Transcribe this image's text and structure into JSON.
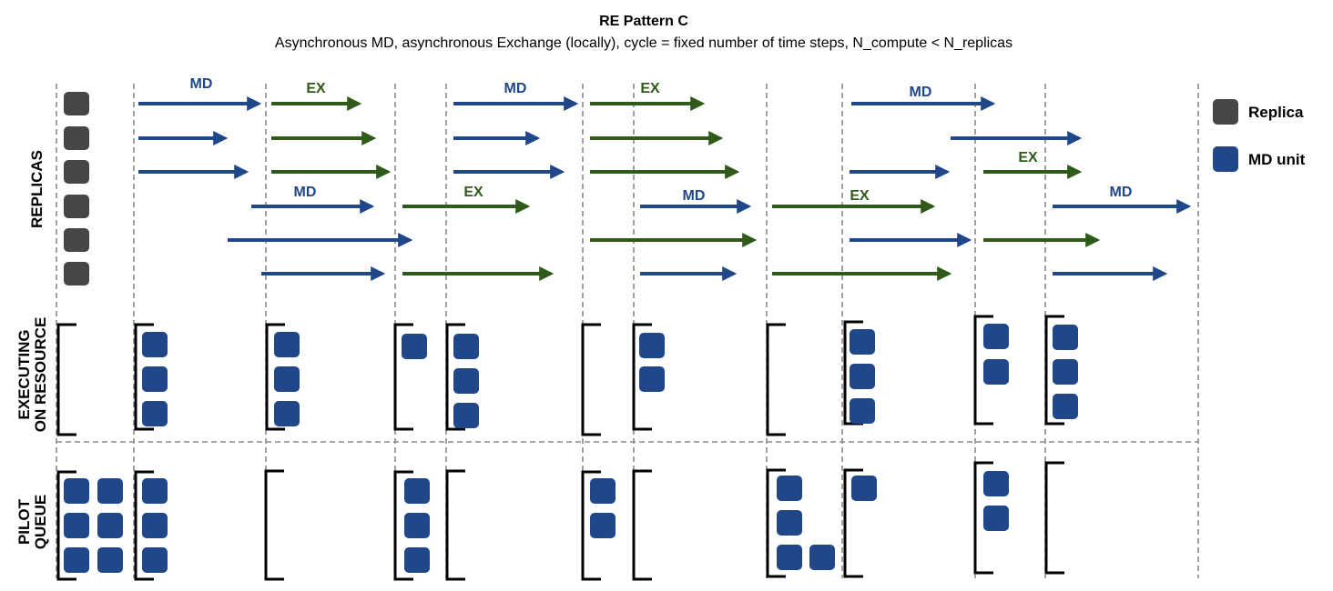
{
  "title": "RE Pattern C",
  "subtitle": "Asynchronous MD, asynchronous Exchange (locally), cycle = fixed number of time steps, N_compute < N_replicas",
  "sections": {
    "replicas": "REPLICAS",
    "executing_line1": "EXECUTING",
    "executing_line2": "ON RESOURCE",
    "queue_line1": "PILOT",
    "queue_line2": "QUEUE"
  },
  "legend": [
    {
      "name": "replica",
      "label": "Replica",
      "color": "#464646"
    },
    {
      "name": "md-unit",
      "label": "MD unit",
      "color": "#1f4789"
    }
  ],
  "colors": {
    "md": "#1f4789",
    "ex": "#2f5a1a",
    "replica": "#464646",
    "divider": "#888888",
    "bracket": "#000000"
  },
  "phase_labels": [
    {
      "text": "MD",
      "kind": "md"
    },
    {
      "text": "EX",
      "kind": "ex"
    },
    {
      "text": "MD",
      "kind": "md"
    },
    {
      "text": "EX",
      "kind": "ex"
    },
    {
      "text": "MD",
      "kind": "md"
    },
    {
      "text": "MD",
      "kind": "md"
    },
    {
      "text": "EX",
      "kind": "ex"
    },
    {
      "text": "MD",
      "kind": "md"
    },
    {
      "text": "EX",
      "kind": "ex"
    },
    {
      "text": "EX",
      "kind": "ex"
    },
    {
      "text": "MD",
      "kind": "md"
    }
  ],
  "replica_count": 6,
  "arrows": [
    {
      "replica": 1,
      "kind": "md"
    },
    {
      "replica": 1,
      "kind": "ex"
    },
    {
      "replica": 1,
      "kind": "md"
    },
    {
      "replica": 1,
      "kind": "ex"
    },
    {
      "replica": 1,
      "kind": "md"
    },
    {
      "replica": 2,
      "kind": "md"
    },
    {
      "replica": 2,
      "kind": "ex"
    },
    {
      "replica": 2,
      "kind": "md"
    },
    {
      "replica": 2,
      "kind": "ex"
    },
    {
      "replica": 2,
      "kind": "md"
    },
    {
      "replica": 3,
      "kind": "md"
    },
    {
      "replica": 3,
      "kind": "ex"
    },
    {
      "replica": 3,
      "kind": "md"
    },
    {
      "replica": 3,
      "kind": "ex"
    },
    {
      "replica": 3,
      "kind": "md"
    },
    {
      "replica": 3,
      "kind": "ex"
    },
    {
      "replica": 4,
      "kind": "md"
    },
    {
      "replica": 4,
      "kind": "ex"
    },
    {
      "replica": 4,
      "kind": "md"
    },
    {
      "replica": 4,
      "kind": "ex"
    },
    {
      "replica": 4,
      "kind": "md"
    },
    {
      "replica": 5,
      "kind": "md"
    },
    {
      "replica": 5,
      "kind": "ex"
    },
    {
      "replica": 5,
      "kind": "md"
    },
    {
      "replica": 5,
      "kind": "ex"
    },
    {
      "replica": 6,
      "kind": "md"
    },
    {
      "replica": 6,
      "kind": "ex"
    },
    {
      "replica": 6,
      "kind": "md"
    },
    {
      "replica": 6,
      "kind": "ex"
    },
    {
      "replica": 6,
      "kind": "md"
    }
  ],
  "executing_units_per_column": [
    0,
    3,
    3,
    1,
    3,
    0,
    2,
    0,
    3,
    2,
    3
  ],
  "queue_units_per_column": [
    6,
    3,
    0,
    3,
    0,
    2,
    0,
    4,
    1,
    2,
    0
  ]
}
